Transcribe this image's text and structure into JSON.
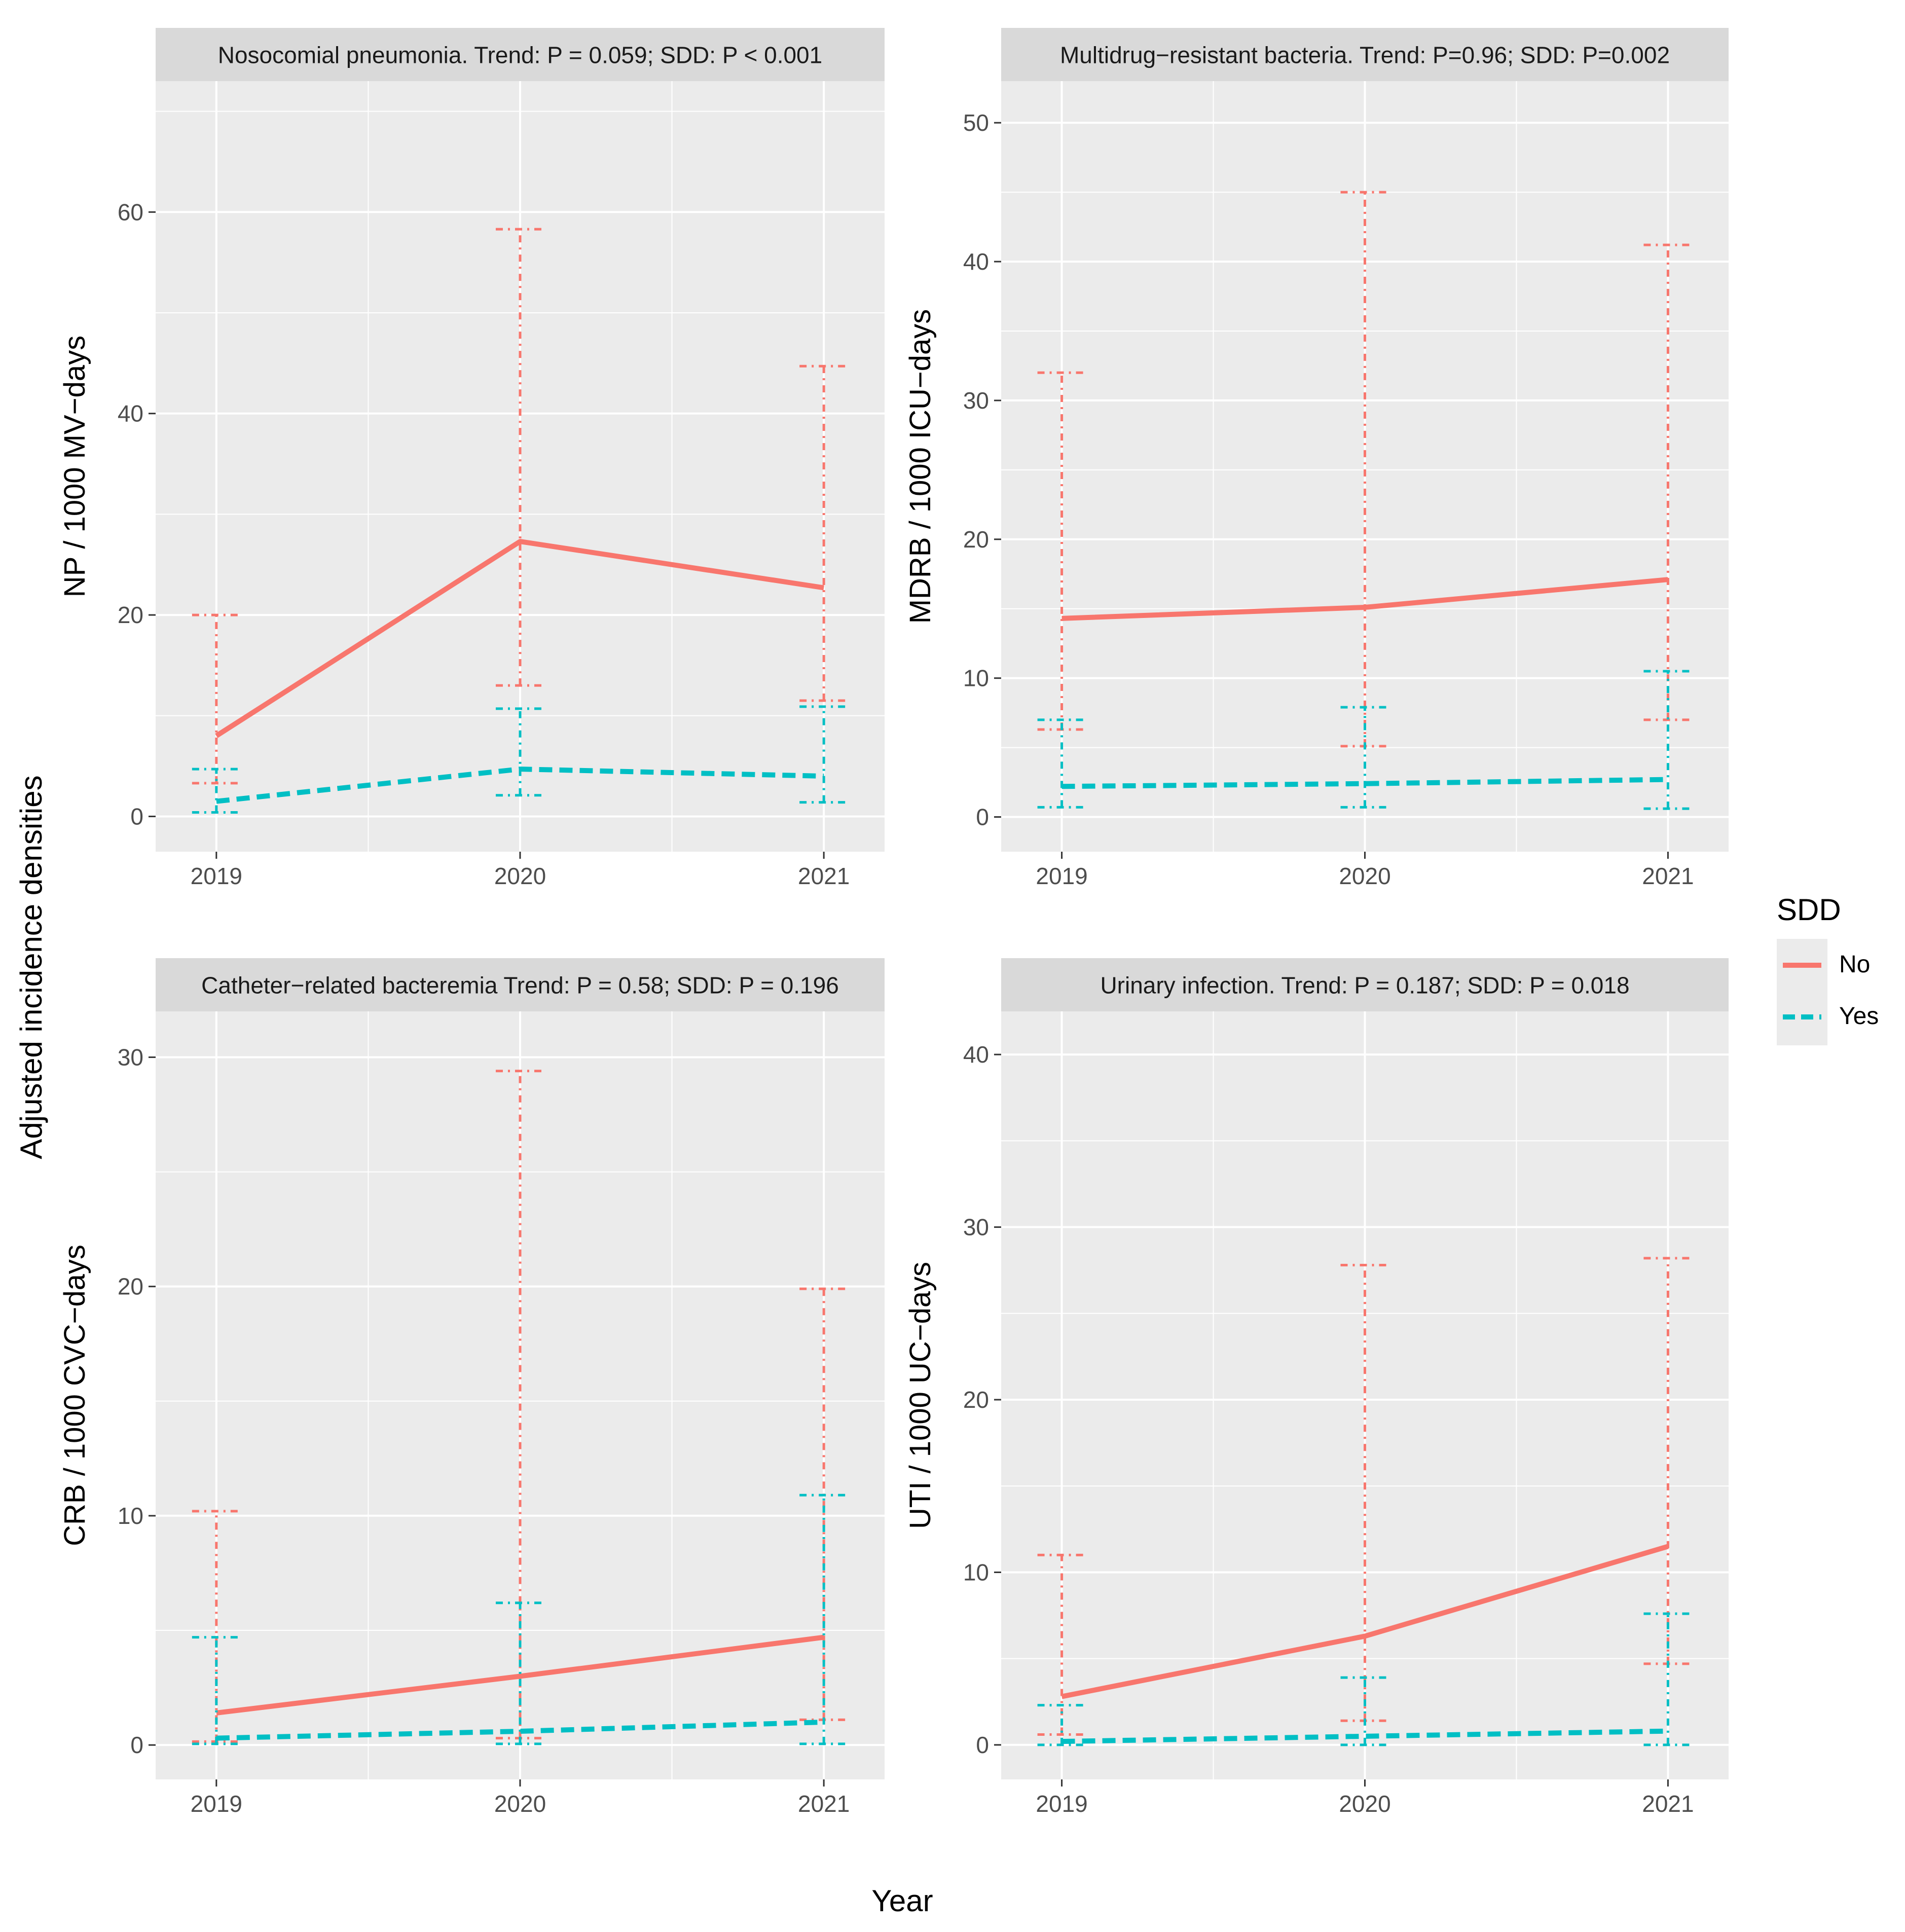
{
  "figure": {
    "xlabel": "Year",
    "ylabel": "Adjusted incidence densities"
  },
  "legend": {
    "title": "SDD",
    "entries": [
      {
        "label": "No",
        "color": "#F8766D",
        "linetype": "solid"
      },
      {
        "label": "Yes",
        "color": "#00BFC4",
        "linetype": "dashed"
      }
    ]
  },
  "chart_data": [
    {
      "type": "line",
      "title": "Nosocomial pneumonia. Trend: P = 0.059; SDD: P < 0.001",
      "ylabel": "NP / 1000 MV−days",
      "xlabel": "Year",
      "categories": [
        "2019",
        "2020",
        "2021"
      ],
      "ylim": [
        -3.5,
        73
      ],
      "yticks": [
        0,
        20,
        40,
        60
      ],
      "series": [
        {
          "name": "No",
          "color": "#F8766D",
          "values": [
            8,
            27.3,
            22.7
          ],
          "lower": [
            3.3,
            13,
            11.5
          ],
          "upper": [
            20,
            58.3,
            44.7
          ]
        },
        {
          "name": "Yes",
          "color": "#00BFC4",
          "values": [
            1.5,
            4.7,
            4
          ],
          "lower": [
            0.4,
            2.1,
            1.4
          ],
          "upper": [
            4.7,
            10.7,
            10.9
          ]
        }
      ]
    },
    {
      "type": "line",
      "title": "Multidrug−resistant bacteria. Trend: P=0.96; SDD: P=0.002",
      "ylabel": "MDRB / 1000 ICU−days",
      "xlabel": "Year",
      "categories": [
        "2019",
        "2020",
        "2021"
      ],
      "ylim": [
        -2.5,
        53
      ],
      "yticks": [
        0,
        10,
        20,
        30,
        40,
        50
      ],
      "series": [
        {
          "name": "No",
          "color": "#F8766D",
          "values": [
            14.3,
            15.1,
            17.1
          ],
          "lower": [
            6.3,
            5.1,
            7
          ],
          "upper": [
            32,
            45,
            41.2
          ]
        },
        {
          "name": "Yes",
          "color": "#00BFC4",
          "values": [
            2.2,
            2.4,
            2.7
          ],
          "lower": [
            0.7,
            0.7,
            0.6
          ],
          "upper": [
            7,
            7.9,
            10.5
          ]
        }
      ]
    },
    {
      "type": "line",
      "title": "Catheter−related bacteremia Trend: P = 0.58;  SDD: P = 0.196",
      "ylabel": "CRB / 1000 CVC−days",
      "xlabel": "Year",
      "categories": [
        "2019",
        "2020",
        "2021"
      ],
      "ylim": [
        -1.5,
        32
      ],
      "yticks": [
        0,
        10,
        20,
        30
      ],
      "series": [
        {
          "name": "No",
          "color": "#F8766D",
          "values": [
            1.4,
            3,
            4.7
          ],
          "lower": [
            0.15,
            0.3,
            1.1
          ],
          "upper": [
            10.2,
            29.4,
            19.9
          ]
        },
        {
          "name": "Yes",
          "color": "#00BFC4",
          "values": [
            0.3,
            0.6,
            1
          ],
          "lower": [
            0.05,
            0.05,
            0.05
          ],
          "upper": [
            4.7,
            6.2,
            10.9
          ]
        }
      ]
    },
    {
      "type": "line",
      "title": "Urinary infection. Trend: P = 0.187;  SDD: P = 0.018",
      "ylabel": "UTI / 1000 UC−days",
      "xlabel": "Year",
      "categories": [
        "2019",
        "2020",
        "2021"
      ],
      "ylim": [
        -2,
        42.5
      ],
      "yticks": [
        0,
        10,
        20,
        30,
        40
      ],
      "series": [
        {
          "name": "No",
          "color": "#F8766D",
          "values": [
            2.8,
            6.3,
            11.5
          ],
          "lower": [
            0.6,
            1.4,
            4.7
          ],
          "upper": [
            11,
            27.8,
            28.2
          ]
        },
        {
          "name": "Yes",
          "color": "#00BFC4",
          "values": [
            0.2,
            0.5,
            0.8
          ],
          "lower": [
            0,
            0,
            0
          ],
          "upper": [
            2.3,
            3.9,
            7.6
          ]
        }
      ]
    }
  ]
}
